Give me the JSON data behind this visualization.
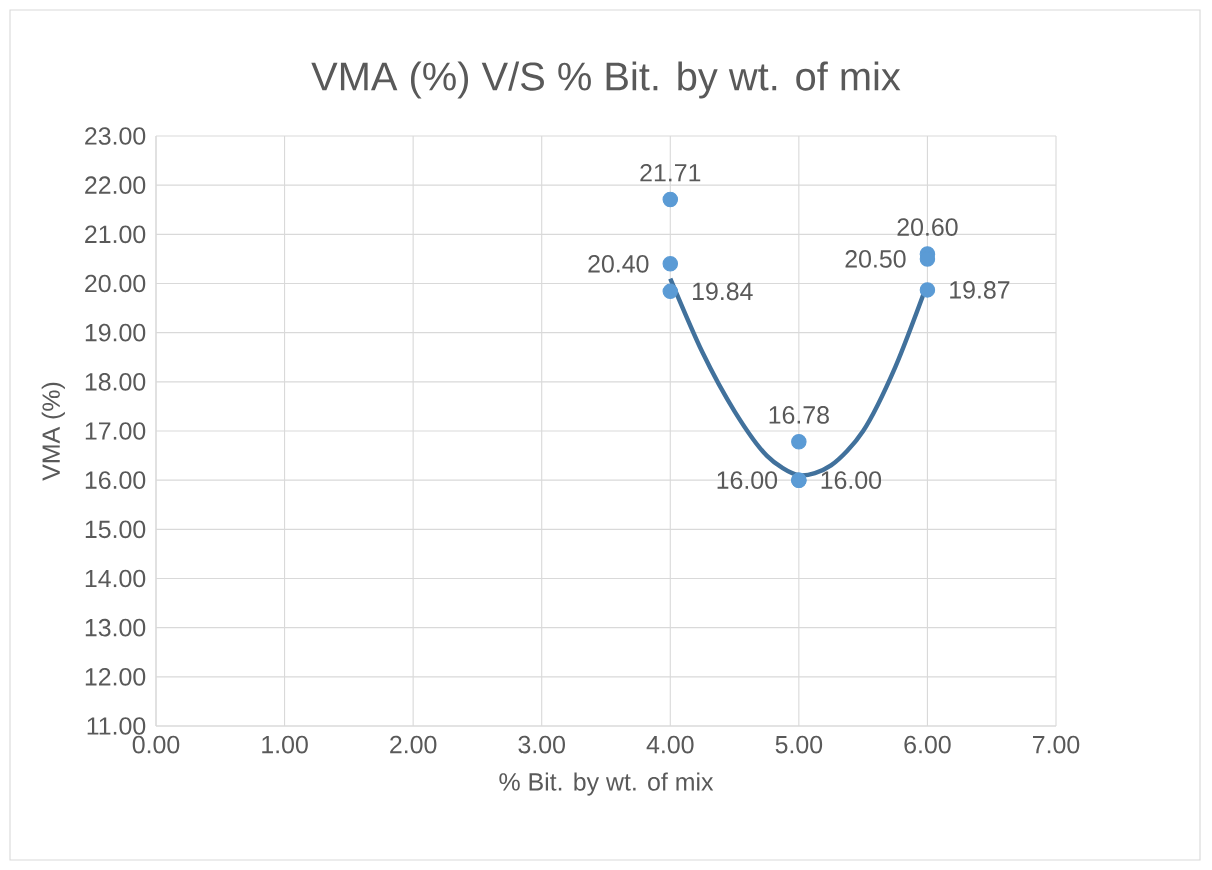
{
  "chart_data": {
    "type": "scatter",
    "title": "VMA (%) V/S % Bit. by wt. of mix",
    "xlabel": "% Bit. by wt. of mix",
    "ylabel": "VMA (%)",
    "xlim": [
      0,
      7
    ],
    "ylim": [
      11,
      23
    ],
    "xticks": [
      {
        "value": 0,
        "label": "0.00"
      },
      {
        "value": 1,
        "label": "1.00"
      },
      {
        "value": 2,
        "label": "2.00"
      },
      {
        "value": 3,
        "label": "3.00"
      },
      {
        "value": 4,
        "label": "4.00"
      },
      {
        "value": 5,
        "label": "5.00"
      },
      {
        "value": 6,
        "label": "6.00"
      },
      {
        "value": 7,
        "label": "7.00"
      }
    ],
    "yticks": [
      {
        "value": 11,
        "label": "11.00"
      },
      {
        "value": 12,
        "label": "12.00"
      },
      {
        "value": 13,
        "label": "13.00"
      },
      {
        "value": 14,
        "label": "14.00"
      },
      {
        "value": 15,
        "label": "15.00"
      },
      {
        "value": 16,
        "label": "16.00"
      },
      {
        "value": 17,
        "label": "17.00"
      },
      {
        "value": 18,
        "label": "18.00"
      },
      {
        "value": 19,
        "label": "19.00"
      },
      {
        "value": 20,
        "label": "20.00"
      },
      {
        "value": 21,
        "label": "21.00"
      },
      {
        "value": 22,
        "label": "22.00"
      },
      {
        "value": 23,
        "label": "23.00"
      }
    ],
    "grid": true,
    "series": [
      {
        "color": "#5b9bd5",
        "marker": "circle",
        "x": [
          4,
          4,
          4,
          5,
          5,
          5,
          6,
          6,
          6
        ],
        "values": [
          21.71,
          20.4,
          19.84,
          16.78,
          16.0,
          16.0,
          20.6,
          20.5,
          19.87
        ],
        "value_labels": [
          "21.71",
          "20.40",
          "19.84",
          "16.78",
          "16.00",
          "16.00",
          "20.60",
          "20.50",
          "19.87"
        ]
      },
      {
        "type": "line",
        "color": "#41719c",
        "marker": "none",
        "x": [
          4,
          4.25,
          4.5,
          4.75,
          5,
          5.25,
          5.5,
          5.75,
          6
        ],
        "values": [
          20.1,
          18.6,
          17.4,
          16.5,
          16.1,
          16.3,
          17.0,
          18.3,
          20.0
        ]
      }
    ]
  }
}
